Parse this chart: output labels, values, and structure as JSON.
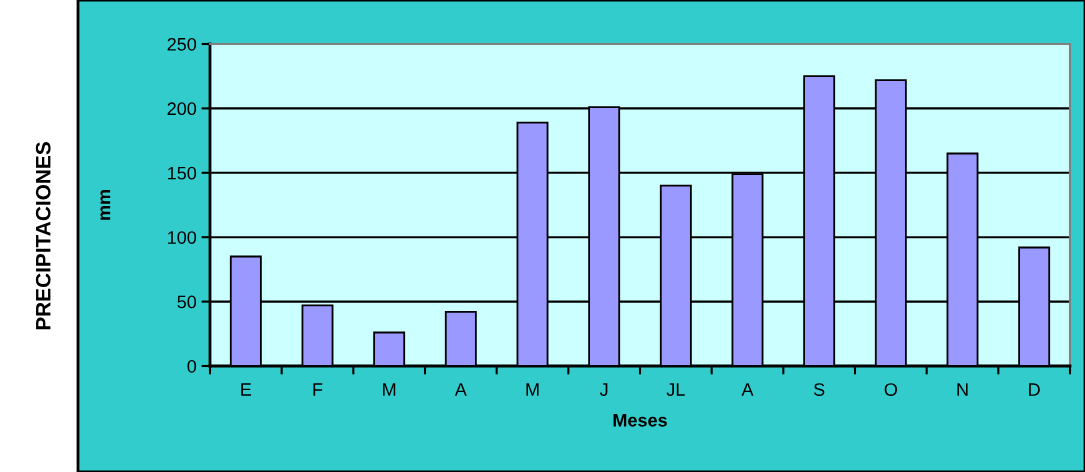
{
  "chart_data": {
    "type": "bar",
    "title": "PRECIPITACIONES",
    "ylabel": "mm",
    "xlabel": "Meses",
    "categories": [
      "E",
      "F",
      "M",
      "A",
      "M",
      "J",
      "JL",
      "A",
      "S",
      "O",
      "N",
      "D"
    ],
    "values": [
      85,
      47,
      26,
      42,
      189,
      201,
      140,
      149,
      225,
      222,
      165,
      92
    ],
    "color": "#9999ff",
    "ylim": [
      0,
      250
    ],
    "yticks": [
      0,
      50,
      100,
      150,
      200,
      250
    ],
    "grid": "y"
  }
}
